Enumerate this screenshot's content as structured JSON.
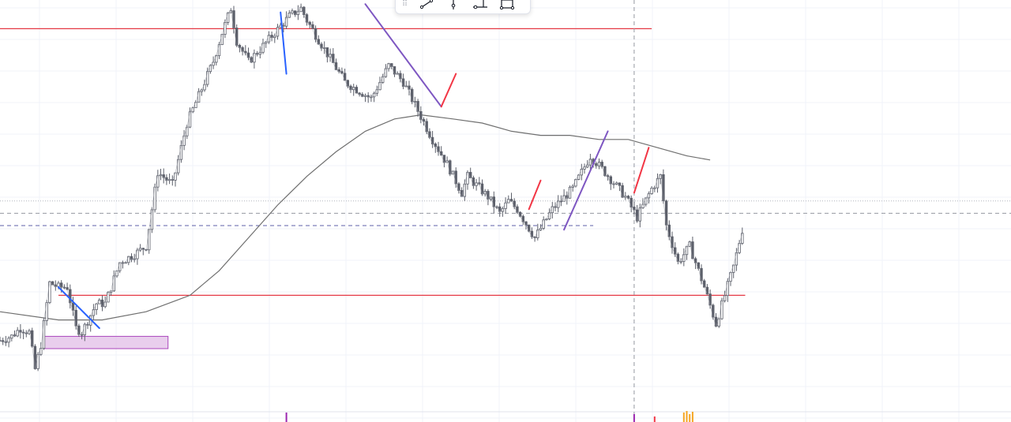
{
  "toolbar": {
    "tools": [
      {
        "icon": "trend-line-icon"
      },
      {
        "icon": "vertical-line-icon"
      },
      {
        "icon": "cross-line-icon"
      },
      {
        "icon": "rectangle-icon"
      }
    ]
  },
  "colors": {
    "candle": "#5d606b",
    "moving_average": "#6f6f6f",
    "support_resistance": "#e53945",
    "blue_line": "#2962ff",
    "purple_line": "#7e57c2",
    "red_line": "#f23645",
    "zone_fill": "#e1bee7",
    "zone_border": "#ab47bc",
    "dashed_level": "#5c5fa8",
    "crosshair": "#9598a1",
    "grid": "#f0f3fa",
    "volume_orange": "#f5a623",
    "volume_purple": "#9c27b0"
  },
  "chart_data": {
    "type": "candlestick",
    "bar_count": 210,
    "y_range": [
      0,
      100
    ],
    "title": "",
    "xlabel": "",
    "ylabel": "",
    "grid": true,
    "price_path": [
      [
        0,
        17
      ],
      [
        8,
        18
      ],
      [
        14,
        20
      ],
      [
        20,
        19
      ],
      [
        24,
        10
      ],
      [
        28,
        16
      ],
      [
        34,
        31
      ],
      [
        40,
        30
      ],
      [
        46,
        30
      ],
      [
        52,
        20
      ],
      [
        56,
        19
      ],
      [
        66,
        26
      ],
      [
        72,
        26
      ],
      [
        82,
        36
      ],
      [
        92,
        38
      ],
      [
        100,
        40
      ],
      [
        108,
        58
      ],
      [
        118,
        55
      ],
      [
        128,
        70
      ],
      [
        146,
        85
      ],
      [
        152,
        92
      ],
      [
        158,
        98
      ],
      [
        162,
        90
      ],
      [
        170,
        85
      ],
      [
        178,
        88
      ],
      [
        188,
        92
      ],
      [
        198,
        96
      ],
      [
        206,
        98
      ],
      [
        210,
        95
      ],
      [
        222,
        88
      ],
      [
        236,
        80
      ],
      [
        254,
        76
      ],
      [
        266,
        84
      ],
      [
        276,
        80
      ],
      [
        296,
        66
      ],
      [
        306,
        60
      ],
      [
        316,
        53
      ],
      [
        320,
        57
      ],
      [
        334,
        52
      ],
      [
        342,
        48
      ],
      [
        348,
        51
      ],
      [
        354,
        49
      ],
      [
        366,
        42
      ],
      [
        378,
        49
      ],
      [
        392,
        54
      ],
      [
        404,
        62
      ],
      [
        414,
        58
      ],
      [
        428,
        52
      ],
      [
        436,
        47
      ],
      [
        446,
        54
      ],
      [
        452,
        57
      ],
      [
        456,
        45
      ],
      [
        464,
        36
      ],
      [
        472,
        40
      ],
      [
        482,
        30
      ],
      [
        490,
        21
      ],
      [
        496,
        28
      ],
      [
        502,
        35
      ],
      [
        508,
        44
      ]
    ],
    "moving_average": [
      [
        0,
        24
      ],
      [
        40,
        22
      ],
      [
        70,
        22
      ],
      [
        100,
        24
      ],
      [
        130,
        28
      ],
      [
        150,
        34
      ],
      [
        170,
        42
      ],
      [
        190,
        50
      ],
      [
        210,
        57
      ],
      [
        230,
        63
      ],
      [
        250,
        68
      ],
      [
        270,
        71
      ],
      [
        288,
        72
      ],
      [
        310,
        71
      ],
      [
        330,
        70
      ],
      [
        350,
        68
      ],
      [
        370,
        67
      ],
      [
        390,
        67
      ],
      [
        410,
        66
      ],
      [
        430,
        66
      ],
      [
        450,
        64
      ],
      [
        470,
        62
      ],
      [
        486,
        61
      ]
    ],
    "levels": [
      {
        "name": "resistance",
        "value": 93,
        "from": 0,
        "to": 446,
        "style": "solid"
      },
      {
        "name": "support",
        "value": 28,
        "from": 40,
        "to": 510,
        "style": "solid"
      },
      {
        "name": "dashed-level",
        "value": 45,
        "from": 0,
        "to": 406,
        "style": "dashed"
      },
      {
        "name": "crosshair-price",
        "value": 48,
        "style": "dashed"
      },
      {
        "name": "last-price",
        "value": 51,
        "style": "dotted"
      }
    ],
    "crosshair_time": 434,
    "zone": {
      "from": 30,
      "to": 115,
      "top": 18,
      "bottom": 15
    },
    "drawings": [
      {
        "name": "blue-down-segment",
        "color": "blue",
        "p1": [
          40,
          30
        ],
        "p2": [
          68,
          20
        ]
      },
      {
        "name": "blue-spike-segment",
        "color": "blue",
        "p1": [
          192,
          97
        ],
        "p2": [
          196,
          82
        ]
      },
      {
        "name": "purple-down-segment",
        "color": "purple",
        "p1": [
          250,
          99
        ],
        "p2": [
          302,
          74
        ]
      },
      {
        "name": "red-up-segment-1",
        "color": "red",
        "p1": [
          302,
          74
        ],
        "p2": [
          312,
          82
        ]
      },
      {
        "name": "red-up-segment-2",
        "color": "red",
        "p1": [
          362,
          49
        ],
        "p2": [
          370,
          56
        ]
      },
      {
        "name": "purple-up-segment",
        "color": "purple",
        "p1": [
          386,
          44
        ],
        "p2": [
          416,
          68
        ]
      },
      {
        "name": "red-up-segment-3",
        "color": "red",
        "p1": [
          434,
          53
        ],
        "p2": [
          444,
          64
        ]
      }
    ],
    "volume_marks": [
      {
        "t": 196,
        "color": "purple",
        "h": 12
      },
      {
        "t": 434,
        "color": "purple",
        "h": 10
      },
      {
        "t": 448,
        "color": "red",
        "h": 7
      },
      {
        "t": 468,
        "color": "orange",
        "h": 12
      },
      {
        "t": 470,
        "color": "orange",
        "h": 14
      },
      {
        "t": 472,
        "color": "orange",
        "h": 10
      },
      {
        "t": 474,
        "color": "orange",
        "h": 13
      }
    ]
  }
}
